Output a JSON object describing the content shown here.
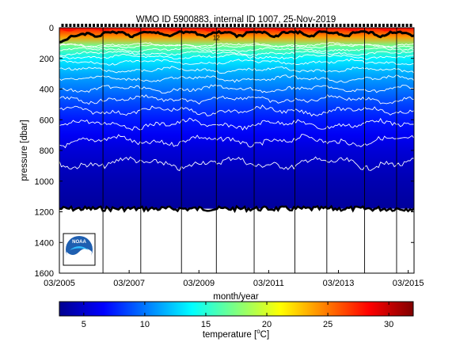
{
  "chart_data": {
    "type": "heatmap",
    "title": "WMO ID 5900883, internal ID 1007, 25-Nov-2019",
    "xlabel": "month/year",
    "ylabel": "pressure [dbar]",
    "x_range": [
      "2005-03",
      "2015-05"
    ],
    "x_tick_labels": [
      "03/2005",
      "03/2007",
      "03/2009",
      "03/2011",
      "03/2013",
      "03/2015"
    ],
    "x_ticks": [
      "2005-03",
      "2007-03",
      "2009-03",
      "2011-03",
      "2013-03",
      "2015-03"
    ],
    "y_range": [
      0,
      1600
    ],
    "y_reversed": true,
    "y_ticks": [
      0,
      200,
      400,
      600,
      800,
      1000,
      1200,
      1400,
      1600
    ],
    "profile_max_pressure": 1180,
    "vertical_gridlines_x": [
      "2006-06",
      "2007-07",
      "2008-09",
      "2009-09",
      "2010-10",
      "2011-12",
      "2012-11",
      "2013-12",
      "2014-11"
    ],
    "colorbar": {
      "label": "temperature [",
      "label_degree": "o",
      "label_unit": "C]",
      "range": [
        3,
        32
      ],
      "ticks": [
        5,
        10,
        15,
        20,
        25,
        30
      ],
      "colormap": "jet"
    },
    "contour_levels_white": [
      5,
      6,
      7,
      8,
      9,
      10,
      11,
      12,
      13,
      14,
      15,
      16,
      17,
      18
    ],
    "contour_labels": [
      {
        "text": "12",
        "x": "2009-09",
        "pressure": 80
      }
    ],
    "temperature_profile": [
      {
        "pressure": 0,
        "value": 28
      },
      {
        "pressure": 60,
        "value": 24
      },
      {
        "pressure": 120,
        "value": 17
      },
      {
        "pressure": 200,
        "value": 13.5
      },
      {
        "pressure": 300,
        "value": 11.5
      },
      {
        "pressure": 400,
        "value": 10
      },
      {
        "pressure": 500,
        "value": 8.5
      },
      {
        "pressure": 600,
        "value": 7.3
      },
      {
        "pressure": 700,
        "value": 6.3
      },
      {
        "pressure": 800,
        "value": 5.5
      },
      {
        "pressure": 900,
        "value": 4.9
      },
      {
        "pressure": 1000,
        "value": 4.4
      },
      {
        "pressure": 1200,
        "value": 3.8
      }
    ]
  },
  "logo": {
    "text": "NOAA",
    "bg_color": "#1f5fb0",
    "accent_color": "#30c0ff"
  },
  "colors": {
    "frame": "#000000",
    "contour": "#ffffff",
    "background": "#ffffff"
  }
}
